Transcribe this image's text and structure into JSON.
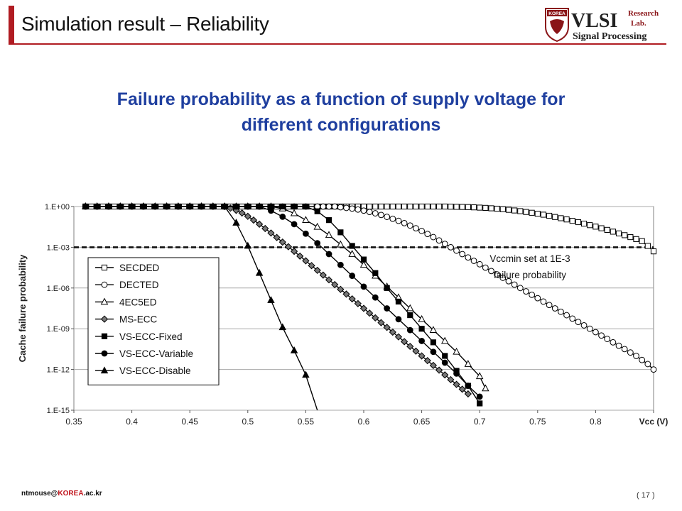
{
  "slide": {
    "title": "Simulation result – Reliability",
    "subtitle_line1": "Failure probability as a function of supply voltage for",
    "subtitle_line2": "different configurations",
    "footer_email_prefix": "ntmouse@",
    "footer_email_accent": "KOREA",
    "footer_email_suffix": ".ac.kr",
    "page_number": "( 17 )",
    "accent_color": "#b01c22",
    "subtitle_color": "#1f3f9f"
  },
  "logo": {
    "emblem_text": "KOREA",
    "main_text": "VLSI",
    "side_text_1": "Research",
    "side_text_2": "Lab.",
    "bottom_text": "Signal Processing"
  },
  "chart_data": {
    "type": "line",
    "xlabel": "Vcc (V)",
    "ylabel": "Cache failure probability",
    "x_ticks": [
      0.35,
      0.4,
      0.45,
      0.5,
      0.55,
      0.6,
      0.65,
      0.7,
      0.75,
      0.8,
      0.85
    ],
    "y_ticks": [
      "1.E+00",
      "1.E-03",
      "1.E-06",
      "1.E-09",
      "1.E-12",
      "1.E-15"
    ],
    "xlim": [
      0.35,
      0.85
    ],
    "ylim_log10": [
      -15,
      0
    ],
    "y_scale": "log",
    "grid": "horizontal",
    "legend_position": "left",
    "threshold": {
      "value": 0.001,
      "label_line1": "Vccmin set at 1E-3",
      "label_line2": "failure probability",
      "style": "dashed"
    },
    "series": [
      {
        "name": "SECDED",
        "marker": "open-square",
        "x": [
          0.36,
          0.365,
          0.37,
          0.375,
          0.38,
          0.385,
          0.39,
          0.395,
          0.4,
          0.405,
          0.41,
          0.415,
          0.42,
          0.425,
          0.43,
          0.435,
          0.44,
          0.445,
          0.45,
          0.455,
          0.46,
          0.465,
          0.47,
          0.475,
          0.48,
          0.485,
          0.49,
          0.495,
          0.5,
          0.505,
          0.51,
          0.515,
          0.52,
          0.525,
          0.53,
          0.535,
          0.54,
          0.545,
          0.55,
          0.555,
          0.56,
          0.565,
          0.57,
          0.575,
          0.58,
          0.585,
          0.59,
          0.595,
          0.6,
          0.605,
          0.61,
          0.615,
          0.62,
          0.625,
          0.63,
          0.635,
          0.64,
          0.645,
          0.65,
          0.655,
          0.66,
          0.665,
          0.67,
          0.675,
          0.68,
          0.685,
          0.69,
          0.695,
          0.7,
          0.705,
          0.71,
          0.715,
          0.72,
          0.725,
          0.73,
          0.735,
          0.74,
          0.745,
          0.75,
          0.755,
          0.76,
          0.765,
          0.77,
          0.775,
          0.78,
          0.785,
          0.79,
          0.795,
          0.8,
          0.805,
          0.81,
          0.815,
          0.82,
          0.825,
          0.83,
          0.835,
          0.84,
          0.845,
          0.85
        ],
        "log10_y": [
          0,
          0,
          0,
          0,
          0,
          0,
          0,
          0,
          0,
          0,
          0,
          0,
          0,
          0,
          0,
          0,
          0,
          0,
          0,
          0,
          0,
          0,
          0,
          0,
          0,
          0,
          0,
          0,
          0,
          0,
          0,
          0,
          0,
          0,
          0,
          0,
          0,
          0,
          0,
          0,
          0,
          0,
          0,
          0,
          0,
          0,
          0,
          0,
          0,
          0,
          0,
          0,
          0,
          0,
          0,
          0,
          0,
          0,
          0,
          0,
          0,
          0,
          0,
          -0.01,
          -0.02,
          -0.03,
          -0.04,
          -0.06,
          -0.08,
          -0.1,
          -0.13,
          -0.16,
          -0.2,
          -0.24,
          -0.29,
          -0.34,
          -0.4,
          -0.46,
          -0.53,
          -0.6,
          -0.68,
          -0.77,
          -0.86,
          -0.95,
          -1.05,
          -1.15,
          -1.26,
          -1.37,
          -1.48,
          -1.6,
          -1.72,
          -1.85,
          -1.98,
          -2.11,
          -2.25,
          -2.4,
          -2.55,
          -2.9,
          -3.3
        ]
      },
      {
        "name": "DECTED",
        "marker": "open-circle",
        "x": [
          0.36,
          0.37,
          0.38,
          0.39,
          0.4,
          0.41,
          0.42,
          0.43,
          0.44,
          0.45,
          0.46,
          0.47,
          0.48,
          0.49,
          0.5,
          0.51,
          0.52,
          0.53,
          0.54,
          0.55,
          0.56,
          0.565,
          0.57,
          0.575,
          0.58,
          0.585,
          0.59,
          0.595,
          0.6,
          0.605,
          0.61,
          0.615,
          0.62,
          0.625,
          0.63,
          0.635,
          0.64,
          0.645,
          0.65,
          0.655,
          0.66,
          0.665,
          0.67,
          0.675,
          0.68,
          0.685,
          0.69,
          0.695,
          0.7,
          0.705,
          0.71,
          0.715,
          0.72,
          0.725,
          0.73,
          0.735,
          0.74,
          0.745,
          0.75,
          0.755,
          0.76,
          0.765,
          0.77,
          0.775,
          0.78,
          0.785,
          0.79,
          0.795,
          0.8,
          0.805,
          0.81,
          0.815,
          0.82,
          0.825,
          0.83,
          0.835,
          0.84,
          0.845,
          0.85
        ],
        "log10_y": [
          0,
          0,
          0,
          0,
          0,
          0,
          0,
          0,
          0,
          0,
          0,
          0,
          0,
          0,
          0,
          0,
          0,
          0,
          0,
          0,
          0,
          0,
          0,
          0,
          -0.05,
          -0.1,
          -0.15,
          -0.22,
          -0.3,
          -0.4,
          -0.5,
          -0.62,
          -0.76,
          -0.9,
          -1.05,
          -1.22,
          -1.4,
          -1.6,
          -1.8,
          -2.02,
          -2.25,
          -2.5,
          -2.75,
          -3.0,
          -3.25,
          -3.5,
          -3.75,
          -4.0,
          -4.25,
          -4.5,
          -4.75,
          -5.0,
          -5.25,
          -5.5,
          -5.75,
          -6.0,
          -6.25,
          -6.5,
          -6.75,
          -7.0,
          -7.25,
          -7.5,
          -7.75,
          -8.0,
          -8.25,
          -8.5,
          -8.75,
          -9.0,
          -9.25,
          -9.5,
          -9.75,
          -10.0,
          -10.25,
          -10.5,
          -10.75,
          -11.0,
          -11.3,
          -11.6,
          -12.0
        ]
      },
      {
        "name": "4EC5ED",
        "marker": "open-triangle",
        "x": [
          0.36,
          0.37,
          0.38,
          0.39,
          0.4,
          0.41,
          0.42,
          0.43,
          0.44,
          0.45,
          0.46,
          0.47,
          0.48,
          0.49,
          0.5,
          0.51,
          0.52,
          0.53,
          0.54,
          0.55,
          0.56,
          0.57,
          0.58,
          0.59,
          0.6,
          0.61,
          0.62,
          0.63,
          0.64,
          0.65,
          0.66,
          0.67,
          0.68,
          0.69,
          0.7,
          0.705
        ],
        "log10_y": [
          0,
          0,
          0,
          0,
          0,
          0,
          0,
          0,
          0,
          0,
          0,
          0,
          0,
          0,
          0,
          0,
          0,
          -0.15,
          -0.5,
          -1.0,
          -1.5,
          -2.1,
          -2.8,
          -3.5,
          -4.3,
          -5.1,
          -5.9,
          -6.7,
          -7.5,
          -8.3,
          -9.1,
          -9.9,
          -10.7,
          -11.6,
          -12.5,
          -13.4
        ]
      },
      {
        "name": "MS-ECC",
        "marker": "filled-diamond",
        "x": [
          0.48,
          0.485,
          0.49,
          0.495,
          0.5,
          0.505,
          0.51,
          0.515,
          0.52,
          0.525,
          0.53,
          0.535,
          0.54,
          0.545,
          0.55,
          0.555,
          0.56,
          0.565,
          0.57,
          0.575,
          0.58,
          0.585,
          0.59,
          0.595,
          0.6,
          0.605,
          0.61,
          0.615,
          0.62,
          0.625,
          0.63,
          0.635,
          0.64,
          0.645,
          0.65,
          0.655,
          0.66,
          0.665,
          0.67,
          0.675,
          0.68,
          0.685,
          0.69
        ],
        "log10_y": [
          0,
          -0.12,
          -0.28,
          -0.48,
          -0.72,
          -1.0,
          -1.3,
          -1.62,
          -1.95,
          -2.28,
          -2.62,
          -2.96,
          -3.3,
          -3.65,
          -4.0,
          -4.35,
          -4.7,
          -5.05,
          -5.4,
          -5.75,
          -6.1,
          -6.45,
          -6.8,
          -7.15,
          -7.5,
          -7.85,
          -8.2,
          -8.55,
          -8.9,
          -9.25,
          -9.6,
          -9.95,
          -10.3,
          -10.65,
          -11.0,
          -11.35,
          -11.7,
          -12.05,
          -12.4,
          -12.75,
          -13.1,
          -13.45,
          -13.8
        ]
      },
      {
        "name": "VS-ECC-Fixed",
        "marker": "filled-square",
        "x": [
          0.36,
          0.37,
          0.38,
          0.39,
          0.4,
          0.41,
          0.42,
          0.43,
          0.44,
          0.45,
          0.46,
          0.47,
          0.48,
          0.49,
          0.5,
          0.51,
          0.52,
          0.53,
          0.54,
          0.55,
          0.56,
          0.57,
          0.58,
          0.59,
          0.6,
          0.61,
          0.62,
          0.63,
          0.64,
          0.65,
          0.66,
          0.67,
          0.68,
          0.69,
          0.7
        ],
        "log10_y": [
          0,
          0,
          0,
          0,
          0,
          0,
          0,
          0,
          0,
          0,
          0,
          0,
          0,
          0,
          0,
          0,
          0,
          0,
          0,
          0,
          -0.35,
          -1.0,
          -1.9,
          -2.9,
          -3.9,
          -4.9,
          -6.0,
          -7.0,
          -8.0,
          -9.0,
          -10.0,
          -11.0,
          -12.1,
          -13.2,
          -14.5
        ]
      },
      {
        "name": "VS-ECC-Variable",
        "marker": "filled-circle",
        "x": [
          0.36,
          0.37,
          0.38,
          0.39,
          0.4,
          0.41,
          0.42,
          0.43,
          0.44,
          0.45,
          0.46,
          0.47,
          0.48,
          0.49,
          0.5,
          0.51,
          0.52,
          0.53,
          0.54,
          0.55,
          0.56,
          0.57,
          0.58,
          0.59,
          0.6,
          0.61,
          0.62,
          0.63,
          0.64,
          0.65,
          0.66,
          0.67,
          0.68,
          0.69,
          0.7
        ],
        "log10_y": [
          0,
          0,
          0,
          0,
          0,
          0,
          0,
          0,
          0,
          0,
          0,
          0,
          0,
          0,
          0,
          0,
          -0.3,
          -0.75,
          -1.3,
          -2.0,
          -2.7,
          -3.5,
          -4.3,
          -5.1,
          -5.9,
          -6.7,
          -7.5,
          -8.3,
          -9.1,
          -9.9,
          -10.7,
          -11.5,
          -12.3,
          -13.2,
          -14.0
        ]
      },
      {
        "name": "VS-ECC-Disable",
        "marker": "filled-triangle",
        "x": [
          0.36,
          0.37,
          0.38,
          0.39,
          0.4,
          0.41,
          0.42,
          0.43,
          0.44,
          0.45,
          0.46,
          0.47,
          0.48,
          0.49,
          0.5,
          0.51,
          0.52,
          0.53,
          0.54,
          0.55,
          0.56
        ],
        "log10_y": [
          0,
          0,
          0,
          0,
          0,
          0,
          0,
          0,
          0,
          0,
          0,
          0,
          0,
          -1.2,
          -2.9,
          -4.9,
          -6.9,
          -8.9,
          -10.6,
          -12.4,
          -15.0
        ]
      }
    ]
  }
}
